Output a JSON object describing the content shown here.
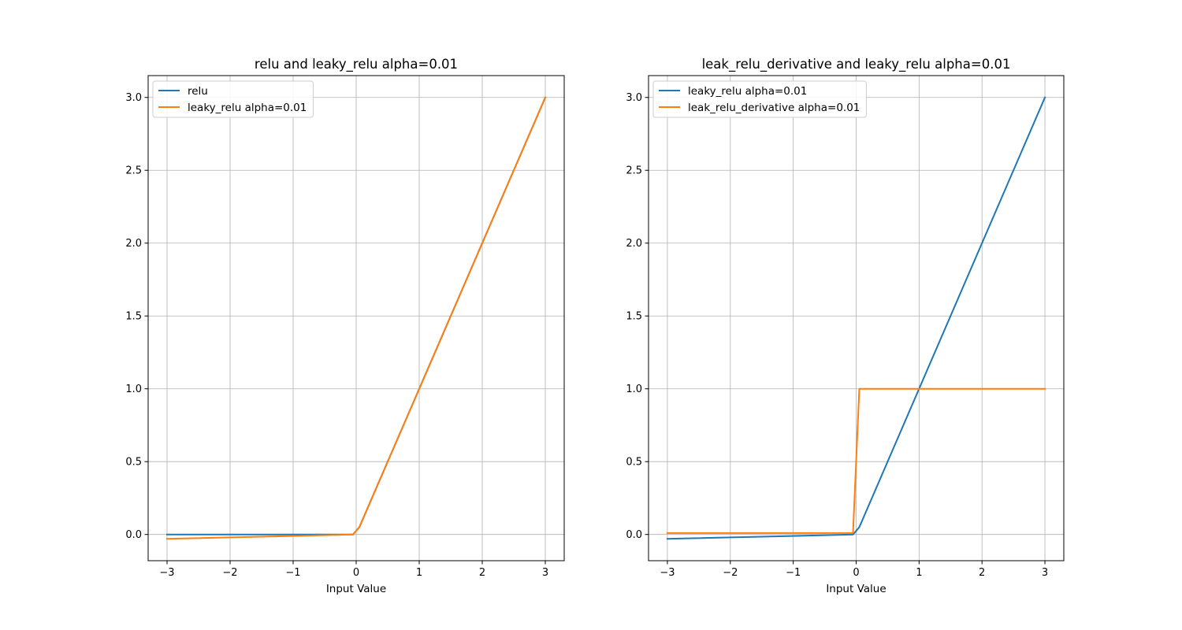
{
  "chart_data": [
    {
      "type": "line",
      "title": "relu and leaky_relu alpha=0.01",
      "xlabel": "Input Value",
      "ylabel": "",
      "xlim": [
        -3.3,
        3.3
      ],
      "ylim": [
        -0.18,
        3.15
      ],
      "xticks": [
        -3,
        -2,
        -1,
        0,
        1,
        2,
        3
      ],
      "xtick_labels": [
        "−3",
        "−2",
        "−1",
        "0",
        "1",
        "2",
        "3"
      ],
      "yticks": [
        0.0,
        0.5,
        1.0,
        1.5,
        2.0,
        2.5,
        3.0
      ],
      "ytick_labels": [
        "0.0",
        "0.5",
        "1.0",
        "1.5",
        "2.0",
        "2.5",
        "3.0"
      ],
      "grid": true,
      "legend": "top-left",
      "series": [
        {
          "name": "relu",
          "color": "#1f77b4",
          "x": [
            -3,
            -0.05,
            0.05,
            3
          ],
          "y": [
            0,
            0,
            0.05,
            3
          ]
        },
        {
          "name": "leaky_relu alpha=0.01",
          "color": "#ff7f0e",
          "x": [
            -3,
            -0.05,
            0.05,
            3
          ],
          "y": [
            -0.03,
            -0.0005,
            0.05,
            3
          ]
        }
      ]
    },
    {
      "type": "line",
      "title": "leak_relu_derivative and leaky_relu alpha=0.01",
      "xlabel": "Input Value",
      "ylabel": "",
      "xlim": [
        -3.3,
        3.3
      ],
      "ylim": [
        -0.18,
        3.15
      ],
      "xticks": [
        -3,
        -2,
        -1,
        0,
        1,
        2,
        3
      ],
      "xtick_labels": [
        "−3",
        "−2",
        "−1",
        "0",
        "1",
        "2",
        "3"
      ],
      "yticks": [
        0.0,
        0.5,
        1.0,
        1.5,
        2.0,
        2.5,
        3.0
      ],
      "ytick_labels": [
        "0.0",
        "0.5",
        "1.0",
        "1.5",
        "2.0",
        "2.5",
        "3.0"
      ],
      "grid": true,
      "legend": "top-left",
      "series": [
        {
          "name": "leaky_relu alpha=0.01",
          "color": "#1f77b4",
          "x": [
            -3,
            -0.05,
            0.05,
            3
          ],
          "y": [
            -0.03,
            -0.0005,
            0.05,
            3
          ]
        },
        {
          "name": "leak_relu_derivative alpha=0.01",
          "color": "#ff7f0e",
          "x": [
            -3,
            -0.05,
            0.05,
            3
          ],
          "y": [
            0.01,
            0.01,
            1,
            1
          ]
        }
      ]
    }
  ]
}
